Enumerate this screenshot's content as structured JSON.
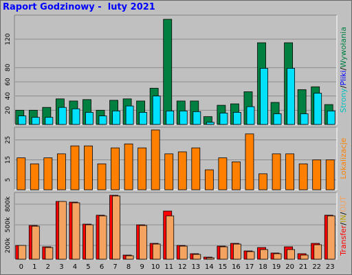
{
  "title": "Raport Godzinowy -  luty 2021",
  "colors": {
    "strony": "#008040",
    "pliki": "#0000ff",
    "wywolania": "#00c0c0",
    "wizyty": "#00e0ff",
    "lokalizacje": "#ff8000",
    "transfer": "#ff0000",
    "in": "#c0a000",
    "out": "#f4a460",
    "plot_bg": "#c0c0c0",
    "grid": "#8c8c8c"
  },
  "chart_data": [
    {
      "type": "bar",
      "panel": "top",
      "categories": [
        "0",
        "1",
        "2",
        "3",
        "4",
        "5",
        "6",
        "7",
        "8",
        "9",
        "10",
        "11",
        "12",
        "13",
        "14",
        "15",
        "16",
        "17",
        "18",
        "19",
        "20",
        "21",
        "22",
        "23"
      ],
      "y_ticks": [
        "20",
        "40",
        "60",
        "80",
        "120"
      ],
      "y_tick_values": [
        20,
        40,
        60,
        80,
        120
      ],
      "ylim": [
        0,
        150
      ],
      "series": [
        {
          "name": "Strony",
          "values": [
            20,
            20,
            24,
            36,
            33,
            35,
            20,
            34,
            36,
            33,
            51,
            148,
            33,
            33,
            11,
            27,
            29,
            46,
            115,
            31,
            115,
            49,
            53,
            28
          ]
        },
        {
          "name": "Wywolania",
          "values": [
            12,
            10,
            10,
            24,
            22,
            17,
            12,
            19,
            26,
            17,
            40,
            19,
            19,
            18,
            3,
            16,
            17,
            25,
            79,
            15,
            79,
            15,
            44,
            19
          ]
        }
      ],
      "side_label": [
        {
          "text": "Strony",
          "color": "#00c0c0"
        },
        {
          "text": "/",
          "color": "#000000"
        },
        {
          "text": "Pliki",
          "color": "#0000ff"
        },
        {
          "text": "/",
          "color": "#000000"
        },
        {
          "text": "Wywołania",
          "color": "#008040"
        }
      ]
    },
    {
      "type": "bar",
      "panel": "middle",
      "categories": [
        "0",
        "1",
        "2",
        "3",
        "4",
        "5",
        "6",
        "7",
        "8",
        "9",
        "10",
        "11",
        "12",
        "13",
        "14",
        "15",
        "16",
        "17",
        "18",
        "19",
        "20",
        "21",
        "22",
        "23"
      ],
      "y_ticks": [
        "5",
        "15",
        "25"
      ],
      "y_tick_values": [
        5,
        15,
        25
      ],
      "ylim": [
        0,
        30
      ],
      "series": [
        {
          "name": "Lokalizacje",
          "values": [
            16,
            13,
            16,
            18,
            22,
            22,
            13,
            21,
            23,
            21,
            30,
            18,
            19,
            21,
            10,
            16,
            14,
            28,
            8,
            18,
            18,
            13,
            15,
            15
          ]
        }
      ],
      "side_label": [
        {
          "text": "Lokalizacje",
          "color": "#ff8000"
        }
      ]
    },
    {
      "type": "bar",
      "panel": "bottom",
      "categories": [
        "0",
        "1",
        "2",
        "3",
        "4",
        "5",
        "6",
        "7",
        "8",
        "9",
        "10",
        "11",
        "12",
        "13",
        "14",
        "15",
        "16",
        "17",
        "18",
        "19",
        "20",
        "21",
        "22",
        "23"
      ],
      "y_ticks": [
        "200k",
        "500k",
        "800k"
      ],
      "y_tick_values": [
        200000,
        500000,
        800000
      ],
      "ylim": [
        0,
        930000
      ],
      "series": [
        {
          "name": "Transfer",
          "values": [
            200000,
            490000,
            180000,
            840000,
            830000,
            510000,
            640000,
            930000,
            60000,
            500000,
            230000,
            700000,
            200000,
            80000,
            30000,
            190000,
            230000,
            120000,
            170000,
            90000,
            180000,
            80000,
            230000,
            640000
          ]
        },
        {
          "name": "OUT",
          "values": [
            200000,
            480000,
            170000,
            840000,
            820000,
            500000,
            630000,
            920000,
            50000,
            490000,
            220000,
            630000,
            190000,
            70000,
            20000,
            180000,
            220000,
            110000,
            140000,
            80000,
            140000,
            60000,
            210000,
            630000
          ]
        }
      ],
      "side_label": [
        {
          "text": "Transfer",
          "color": "#ff0000"
        },
        {
          "text": "/",
          "color": "#000000"
        },
        {
          "text": "IN",
          "color": "#c0a000"
        },
        {
          "text": "/",
          "color": "#000000"
        },
        {
          "text": "OUT",
          "color": "#f4a460"
        }
      ]
    }
  ]
}
